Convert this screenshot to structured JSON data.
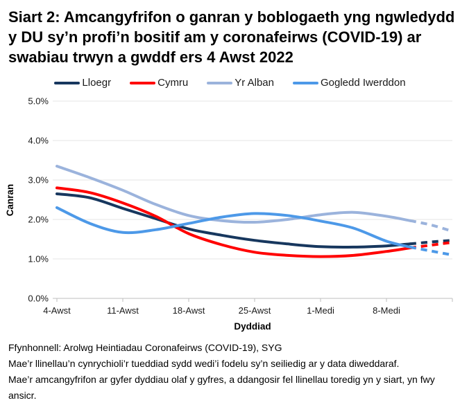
{
  "title": "Siart 2: Amcangyfrifon o ganran y boblogaeth yng ngwledydd y DU sy’n profi’n bositif am y coronafeirws (COVID-19) ar swabiau trwyn a gwddf ers 4 Awst 2022",
  "footer": {
    "source": "Ffynhonnell: Arolwg Heintiadau Coronafeirws (COVID-19), SYG",
    "note1": "Mae’r llinellau’n cynrychioli’r tueddiad sydd wedi’i fodelu sy’n seiliedig ar y data diweddaraf.",
    "note2": "Mae’r amcangyfrifon ar gyfer dyddiau olaf y gyfres, a ddangosir fel llinellau toredig yn y siart, yn fwy ansicr."
  },
  "chart_data": {
    "type": "line",
    "xlabel": "Dyddiad",
    "ylabel": "Canran",
    "ylim": [
      0,
      5
    ],
    "grid": "horizontal",
    "legend_position": "top",
    "ytick_values": [
      0,
      1,
      2,
      3,
      4,
      5
    ],
    "ytick_labels": [
      "0.0%",
      "1.0%",
      "2.0%",
      "3.0%",
      "4.0%",
      "5.0%"
    ],
    "xtick_labels": [
      "4-Awst",
      "11-Awst",
      "18-Awst",
      "25-Awst",
      "1-Medi",
      "8-Medi"
    ],
    "xtick_days": [
      0,
      7,
      14,
      21,
      28,
      35
    ],
    "x_days": [
      0,
      3.5,
      7,
      10.5,
      14,
      17.5,
      21,
      24.5,
      28,
      31.5,
      35,
      37.5,
      39.75,
      42
    ],
    "dashed_from_day": 37.5,
    "dashed_note": "trailing estimates shown as dashed lines",
    "series": [
      {
        "name": "Lloegr",
        "slug": "lloegr",
        "color": "#17375E",
        "values": [
          2.65,
          2.55,
          2.28,
          2.02,
          1.76,
          1.6,
          1.47,
          1.38,
          1.31,
          1.3,
          1.33,
          1.38,
          1.43,
          1.47
        ]
      },
      {
        "name": "Cymru",
        "slug": "cymru",
        "color": "#FF0000",
        "values": [
          2.8,
          2.68,
          2.42,
          2.08,
          1.64,
          1.36,
          1.17,
          1.09,
          1.06,
          1.09,
          1.19,
          1.28,
          1.35,
          1.42
        ]
      },
      {
        "name": "Yr Alban",
        "slug": "yr-alban",
        "color": "#9BB3DC",
        "values": [
          3.35,
          3.06,
          2.74,
          2.38,
          2.1,
          1.97,
          1.93,
          2.0,
          2.12,
          2.18,
          2.08,
          1.97,
          1.86,
          1.7
        ]
      },
      {
        "name": "Gogledd Iwerddon",
        "slug": "gogledd-iwerddon",
        "color": "#4D99E8",
        "values": [
          2.3,
          1.9,
          1.67,
          1.74,
          1.9,
          2.06,
          2.15,
          2.1,
          1.96,
          1.78,
          1.45,
          1.3,
          1.2,
          1.1
        ]
      }
    ]
  }
}
